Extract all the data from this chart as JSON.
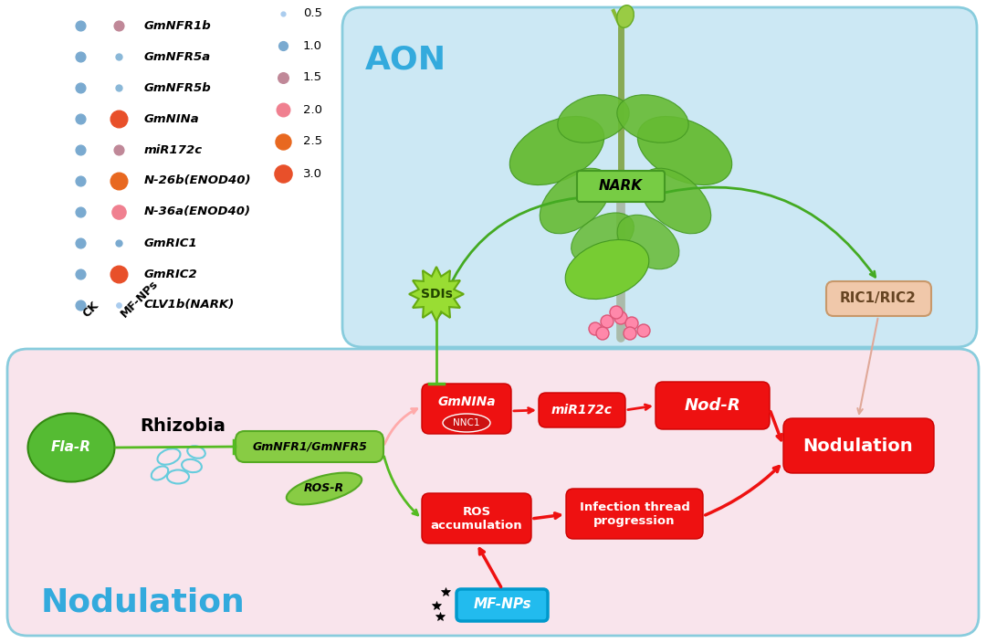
{
  "legend_genes": [
    "GmNFR1b",
    "GmNFR5a",
    "GmNFR5b",
    "GmNINa",
    "miR172c",
    "N-26b(ENOD40)",
    "N-36a(ENOD40)",
    "GmRIC1",
    "GmRIC2",
    "CLV1b(NARK)"
  ],
  "ck_color": "#7aaad0",
  "mfnp_colors": [
    "#c08898",
    "#8ab8d8",
    "#8ab8d8",
    "#e8502a",
    "#c08898",
    "#e86820",
    "#f08090",
    "#7aaad0",
    "#e8502a",
    "#aaccee"
  ],
  "ck_size": 60,
  "mfnp_sizes": [
    60,
    25,
    25,
    180,
    60,
    180,
    120,
    25,
    180,
    15
  ],
  "size_legend_vals": [
    "0.5",
    "1.0",
    "1.5",
    "2.0",
    "2.5",
    "3.0"
  ],
  "size_legend_colors": [
    "#aaccee",
    "#7aaad0",
    "#c08898",
    "#f08090",
    "#e86820",
    "#e8502a"
  ],
  "size_legend_sizes": [
    12,
    50,
    70,
    110,
    150,
    190
  ],
  "bg_aon": "#cce8f4",
  "bg_nodulation": "#f9e4ec",
  "color_red": "#ee1111",
  "color_green": "#55bb22",
  "color_blue_text": "#33aadd",
  "color_border": "#88ccdd"
}
